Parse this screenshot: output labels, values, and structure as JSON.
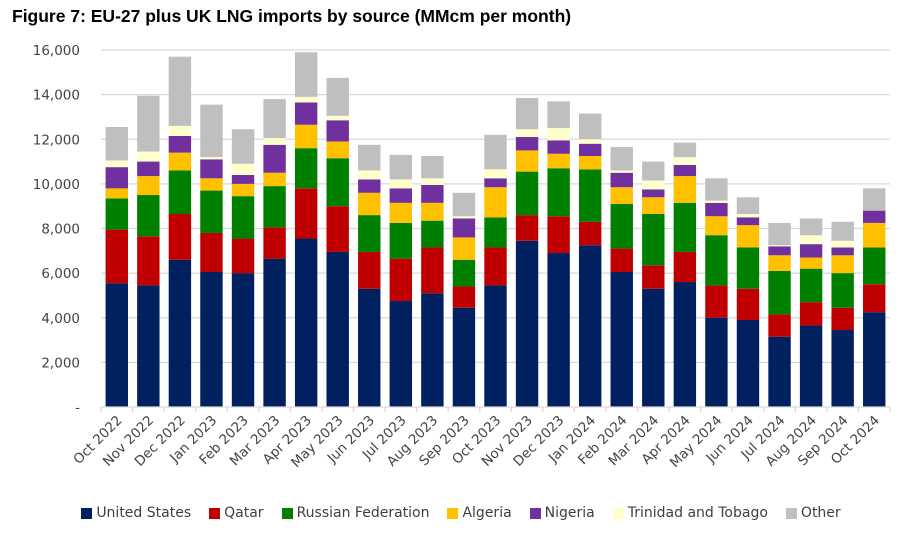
{
  "chart_data": {
    "type": "bar",
    "stacked": true,
    "title": "Figure 7: EU-27 plus UK LNG imports by source (MMcm per month)",
    "xlabel": "",
    "ylabel": "",
    "ylim": [
      0,
      16000
    ],
    "yticks": [
      0,
      2000,
      4000,
      6000,
      8000,
      10000,
      12000,
      14000,
      16000
    ],
    "ytick_labels": [
      "-",
      "2,000",
      "4,000",
      "6,000",
      "8,000",
      "10,000",
      "12,000",
      "14,000",
      "16,000"
    ],
    "grid": true,
    "legend_position": "bottom",
    "categories": [
      "Oct 2022",
      "Nov 2022",
      "Dec 2022",
      "Jan 2023",
      "Feb 2023",
      "Mar 2023",
      "Apr 2023",
      "May 2023",
      "Jun 2023",
      "Jul 2023",
      "Aug 2023",
      "Sep 2023",
      "Oct 2023",
      "Nov 2023",
      "Dec 2023",
      "Jan 2024",
      "Feb 2024",
      "Mar 2024",
      "Apr 2024",
      "May 2024",
      "Jun 2024",
      "Jul 2024",
      "Aug 2024",
      "Sep 2024",
      "Oct 2024"
    ],
    "series": [
      {
        "name": "United States",
        "color": "#002060",
        "values": [
          5550,
          5450,
          6600,
          6050,
          6000,
          6650,
          7550,
          6950,
          5300,
          4750,
          5100,
          4450,
          5450,
          7450,
          6900,
          7250,
          6050,
          5300,
          5600,
          4000,
          3900,
          3150,
          3650,
          3450,
          4250
        ]
      },
      {
        "name": "Qatar",
        "color": "#C00000",
        "values": [
          2400,
          2200,
          2050,
          1750,
          1550,
          1400,
          2250,
          2050,
          1650,
          1900,
          2050,
          950,
          1700,
          1150,
          1650,
          1050,
          1050,
          1050,
          1350,
          1450,
          1400,
          1000,
          1050,
          1000,
          1250
        ]
      },
      {
        "name": "Russian Federation",
        "color": "#008000",
        "values": [
          1400,
          1850,
          1950,
          1900,
          1900,
          1850,
          1800,
          2150,
          1650,
          1600,
          1200,
          1200,
          1350,
          1950,
          2150,
          2350,
          2000,
          2300,
          2200,
          2250,
          1850,
          1950,
          1500,
          1550,
          1650
        ]
      },
      {
        "name": "Algeria",
        "color": "#FFC000",
        "values": [
          450,
          850,
          800,
          550,
          550,
          600,
          1050,
          750,
          1000,
          900,
          800,
          1000,
          1350,
          950,
          650,
          600,
          750,
          750,
          1200,
          850,
          1000,
          700,
          500,
          800,
          1100
        ]
      },
      {
        "name": "Nigeria",
        "color": "#7030A0",
        "values": [
          950,
          650,
          750,
          850,
          400,
          1250,
          1000,
          950,
          600,
          650,
          800,
          850,
          400,
          600,
          600,
          550,
          650,
          350,
          500,
          600,
          350,
          400,
          600,
          350,
          550
        ]
      },
      {
        "name": "Trinidad and Tobago",
        "color": "#FFFFCC",
        "values": [
          300,
          450,
          450,
          100,
          500,
          300,
          250,
          200,
          400,
          400,
          300,
          100,
          400,
          350,
          550,
          200,
          100,
          400,
          350,
          100,
          150,
          50,
          400,
          300,
          0
        ]
      },
      {
        "name": "Other",
        "color": "#BFBFBF",
        "values": [
          1500,
          2500,
          3100,
          2350,
          1550,
          1750,
          2000,
          1700,
          1150,
          1100,
          1000,
          1050,
          1550,
          1400,
          1200,
          1150,
          1050,
          850,
          650,
          1000,
          750,
          1000,
          750,
          850,
          1000
        ]
      }
    ]
  }
}
